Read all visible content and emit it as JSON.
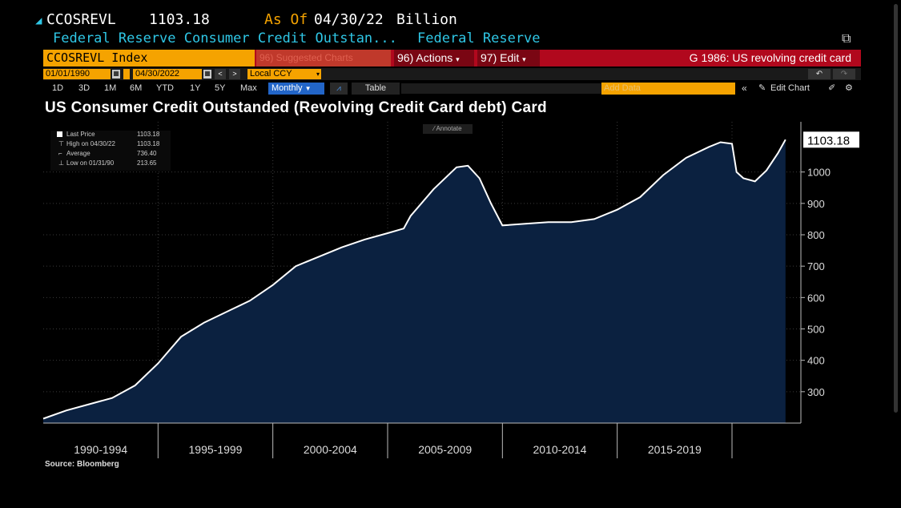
{
  "header": {
    "ticker": "CCOSREVL",
    "last_value": "1103.18",
    "as_of_label": "As Of",
    "as_of_date": "04/30/22",
    "unit": "Billion",
    "description": "Federal Reserve Consumer Credit Outstan...",
    "source_name": "Federal Reserve"
  },
  "toolbar": {
    "security": "CCOSREVL Index",
    "suggested": "96) Suggested Charts",
    "actions": "96) Actions",
    "edit": "97) Edit",
    "graph_title": "G 1986: US revolving credit card",
    "start_date": "01/01/1990",
    "end_date": "04/30/2022",
    "currency": "Local CCY",
    "periods": [
      "1D",
      "3D",
      "1M",
      "6M",
      "YTD",
      "1Y",
      "5Y",
      "Max"
    ],
    "frequency": "Monthly",
    "table": "Table",
    "add_data": "Add Data",
    "edit_chart": "Edit Chart"
  },
  "legend": {
    "rows": [
      {
        "label": "Last Price",
        "value": "1103.18"
      },
      {
        "label": "High on 04/30/22",
        "value": "1103.18"
      },
      {
        "label": "Average",
        "value": "736.40"
      },
      {
        "label": "Low on 01/31/90",
        "value": "213.65"
      }
    ],
    "annotate": "Annotate"
  },
  "colors": {
    "area_fill": "#0b2140",
    "line": "#ffffff",
    "toolbar_red": "#b1081d",
    "toolbar_orange": "#f5a300",
    "cyan": "#2fc7e6"
  },
  "source": "Source: Bloomberg",
  "chart_data": {
    "type": "area",
    "title": "US Consumer Credit Outstanded (Revolving Credit Card debt) Card",
    "xlabel": "",
    "ylabel": "",
    "ylim": [
      200,
      1160
    ],
    "yticks": [
      300,
      400,
      500,
      600,
      700,
      800,
      900,
      1000
    ],
    "last_value_label": "1103.18",
    "x_period_labels": [
      "1990-1994",
      "1995-1999",
      "2000-2004",
      "2005-2009",
      "2010-2014",
      "2015-2019"
    ],
    "grid": true,
    "x": [
      1990.0,
      1991.0,
      1992.0,
      1993.0,
      1994.0,
      1995.0,
      1996.0,
      1997.0,
      1998.0,
      1999.0,
      2000.0,
      2001.0,
      2002.0,
      2003.0,
      2004.0,
      2005.0,
      2005.7,
      2006.0,
      2007.0,
      2008.0,
      2008.5,
      2009.0,
      2009.5,
      2010.0,
      2011.0,
      2012.0,
      2013.0,
      2014.0,
      2015.0,
      2016.0,
      2017.0,
      2018.0,
      2019.0,
      2019.5,
      2020.0,
      2020.2,
      2020.5,
      2021.0,
      2021.5,
      2022.0,
      2022.33
    ],
    "series": [
      {
        "values": [
          214,
          240,
          260,
          280,
          320,
          390,
          475,
          520,
          555,
          590,
          640,
          700,
          730,
          760,
          785,
          805,
          820,
          860,
          945,
          1015,
          1020,
          980,
          900,
          830,
          835,
          840,
          840,
          850,
          880,
          920,
          990,
          1045,
          1080,
          1095,
          1090,
          1000,
          980,
          970,
          1005,
          1060,
          1103
        ]
      }
    ]
  }
}
